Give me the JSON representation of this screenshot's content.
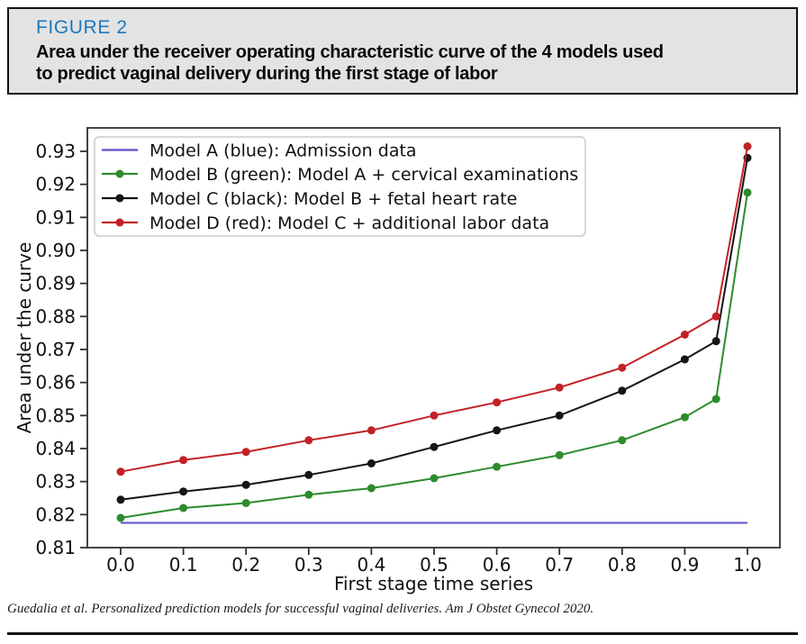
{
  "header": {
    "figure_label": "FIGURE 2",
    "title_line1": "Area under the receiver operating characteristic curve of the 4 models used",
    "title_line2": "to predict vaginal delivery during the first stage of labor"
  },
  "footer": {
    "citation": "Guedalia et al. Personalized prediction models for successful vaginal deliveries. Am J Obstet Gynecol 2020."
  },
  "colors": {
    "figure_label_blue": "#1b79c0",
    "header_bg": "#e3e3e3",
    "axis_stroke": "#2f2f2f",
    "legend_border": "#cccccc",
    "model_a_blue": "#5b51cc",
    "model_b_green": "#2e8b2e",
    "model_c_black": "#151515",
    "model_d_red": "#c22126"
  },
  "chart_data": {
    "type": "line",
    "title": "",
    "xlabel": "First stage time series",
    "ylabel": "Area under the curve",
    "xlim": [
      -0.053,
      1.052
    ],
    "ylim": [
      0.81,
      0.9376
    ],
    "grid": false,
    "legend_position": "upper left",
    "xticks": [
      "0.0",
      "0.1",
      "0.2",
      "0.3",
      "0.4",
      "0.5",
      "0.6",
      "0.7",
      "0.8",
      "0.9",
      "1.0"
    ],
    "yticks": [
      "0.81",
      "0.82",
      "0.83",
      "0.84",
      "0.85",
      "0.86",
      "0.87",
      "0.88",
      "0.89",
      "0.90",
      "0.91",
      "0.92",
      "0.93"
    ],
    "x": [
      0.0,
      0.1,
      0.2,
      0.3,
      0.4,
      0.5,
      0.6,
      0.7,
      0.8,
      0.9,
      0.95,
      1.0
    ],
    "series": [
      {
        "name": "Model A (blue): Admission data",
        "color": "#5b51cc",
        "marker": "none",
        "x": [
          0.0,
          1.0
        ],
        "values": [
          0.8175,
          0.8175
        ]
      },
      {
        "name": "Model B (green): Model A + cervical examinations",
        "color": "#2e8b2e",
        "marker": "circle",
        "values": [
          0.819,
          0.822,
          0.8235,
          0.826,
          0.828,
          0.831,
          0.8345,
          0.838,
          0.8425,
          0.8495,
          0.855,
          0.9175
        ]
      },
      {
        "name": "Model C (black): Model B + fetal heart rate",
        "color": "#151515",
        "marker": "circle",
        "values": [
          0.8245,
          0.827,
          0.829,
          0.832,
          0.8355,
          0.8405,
          0.8455,
          0.85,
          0.8575,
          0.867,
          0.8725,
          0.928
        ]
      },
      {
        "name": "Model D (red): Model C + additional labor data",
        "color": "#c22126",
        "marker": "circle",
        "values": [
          0.833,
          0.8365,
          0.839,
          0.8425,
          0.8455,
          0.85,
          0.854,
          0.8585,
          0.8645,
          0.8745,
          0.88,
          0.9315
        ]
      }
    ]
  }
}
